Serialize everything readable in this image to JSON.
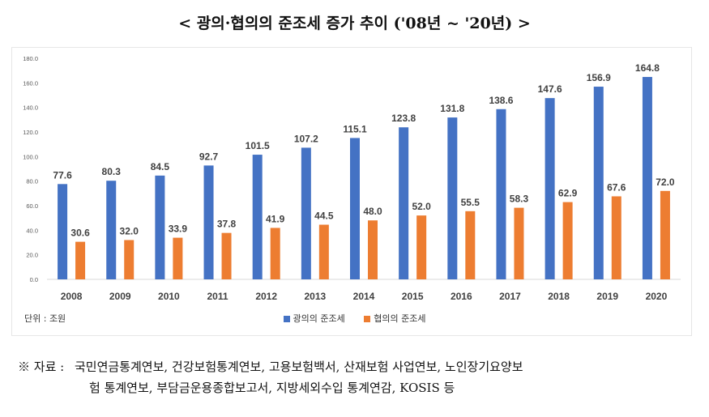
{
  "title": "< 광의·협의의 준조세 증가 추이 ('08년 ~ '20년) >",
  "unit_label": "단위 : 조원",
  "legend": [
    {
      "label": "광의의 준조세",
      "color": "#4472C4"
    },
    {
      "label": "협의의 준조세",
      "color": "#ED7D31"
    }
  ],
  "source": {
    "prefix": "※ 자료 :",
    "line1": "국민연금통계연보, 건강보험통계연보, 고용보험백서, 산재보험 사업연보, 노인장기요양보",
    "line2": "험 통계연보, 부담금운용종합보고서, 지방세외수입 통계연감, KOSIS 등"
  },
  "chart_data": {
    "type": "bar",
    "categories": [
      "2008",
      "2009",
      "2010",
      "2011",
      "2012",
      "2013",
      "2014",
      "2015",
      "2016",
      "2017",
      "2018",
      "2019",
      "2020"
    ],
    "series": [
      {
        "name": "광의의 준조세",
        "color": "#4472C4",
        "values": [
          77.6,
          80.3,
          84.5,
          92.7,
          101.5,
          107.2,
          115.1,
          123.8,
          131.8,
          138.6,
          147.6,
          156.9,
          164.8
        ]
      },
      {
        "name": "협의의 준조세",
        "color": "#ED7D31",
        "values": [
          30.6,
          32.0,
          33.9,
          37.8,
          41.9,
          44.5,
          48.0,
          52.0,
          55.5,
          58.3,
          62.9,
          67.6,
          72.0
        ]
      }
    ],
    "ylim": [
      0,
      180
    ],
    "yticks": [
      "0.0",
      "20.0",
      "40.0",
      "60.0",
      "80.0",
      "100.0",
      "120.0",
      "140.0",
      "160.0",
      "180.0"
    ],
    "grid": false,
    "legend_position": "bottom"
  }
}
